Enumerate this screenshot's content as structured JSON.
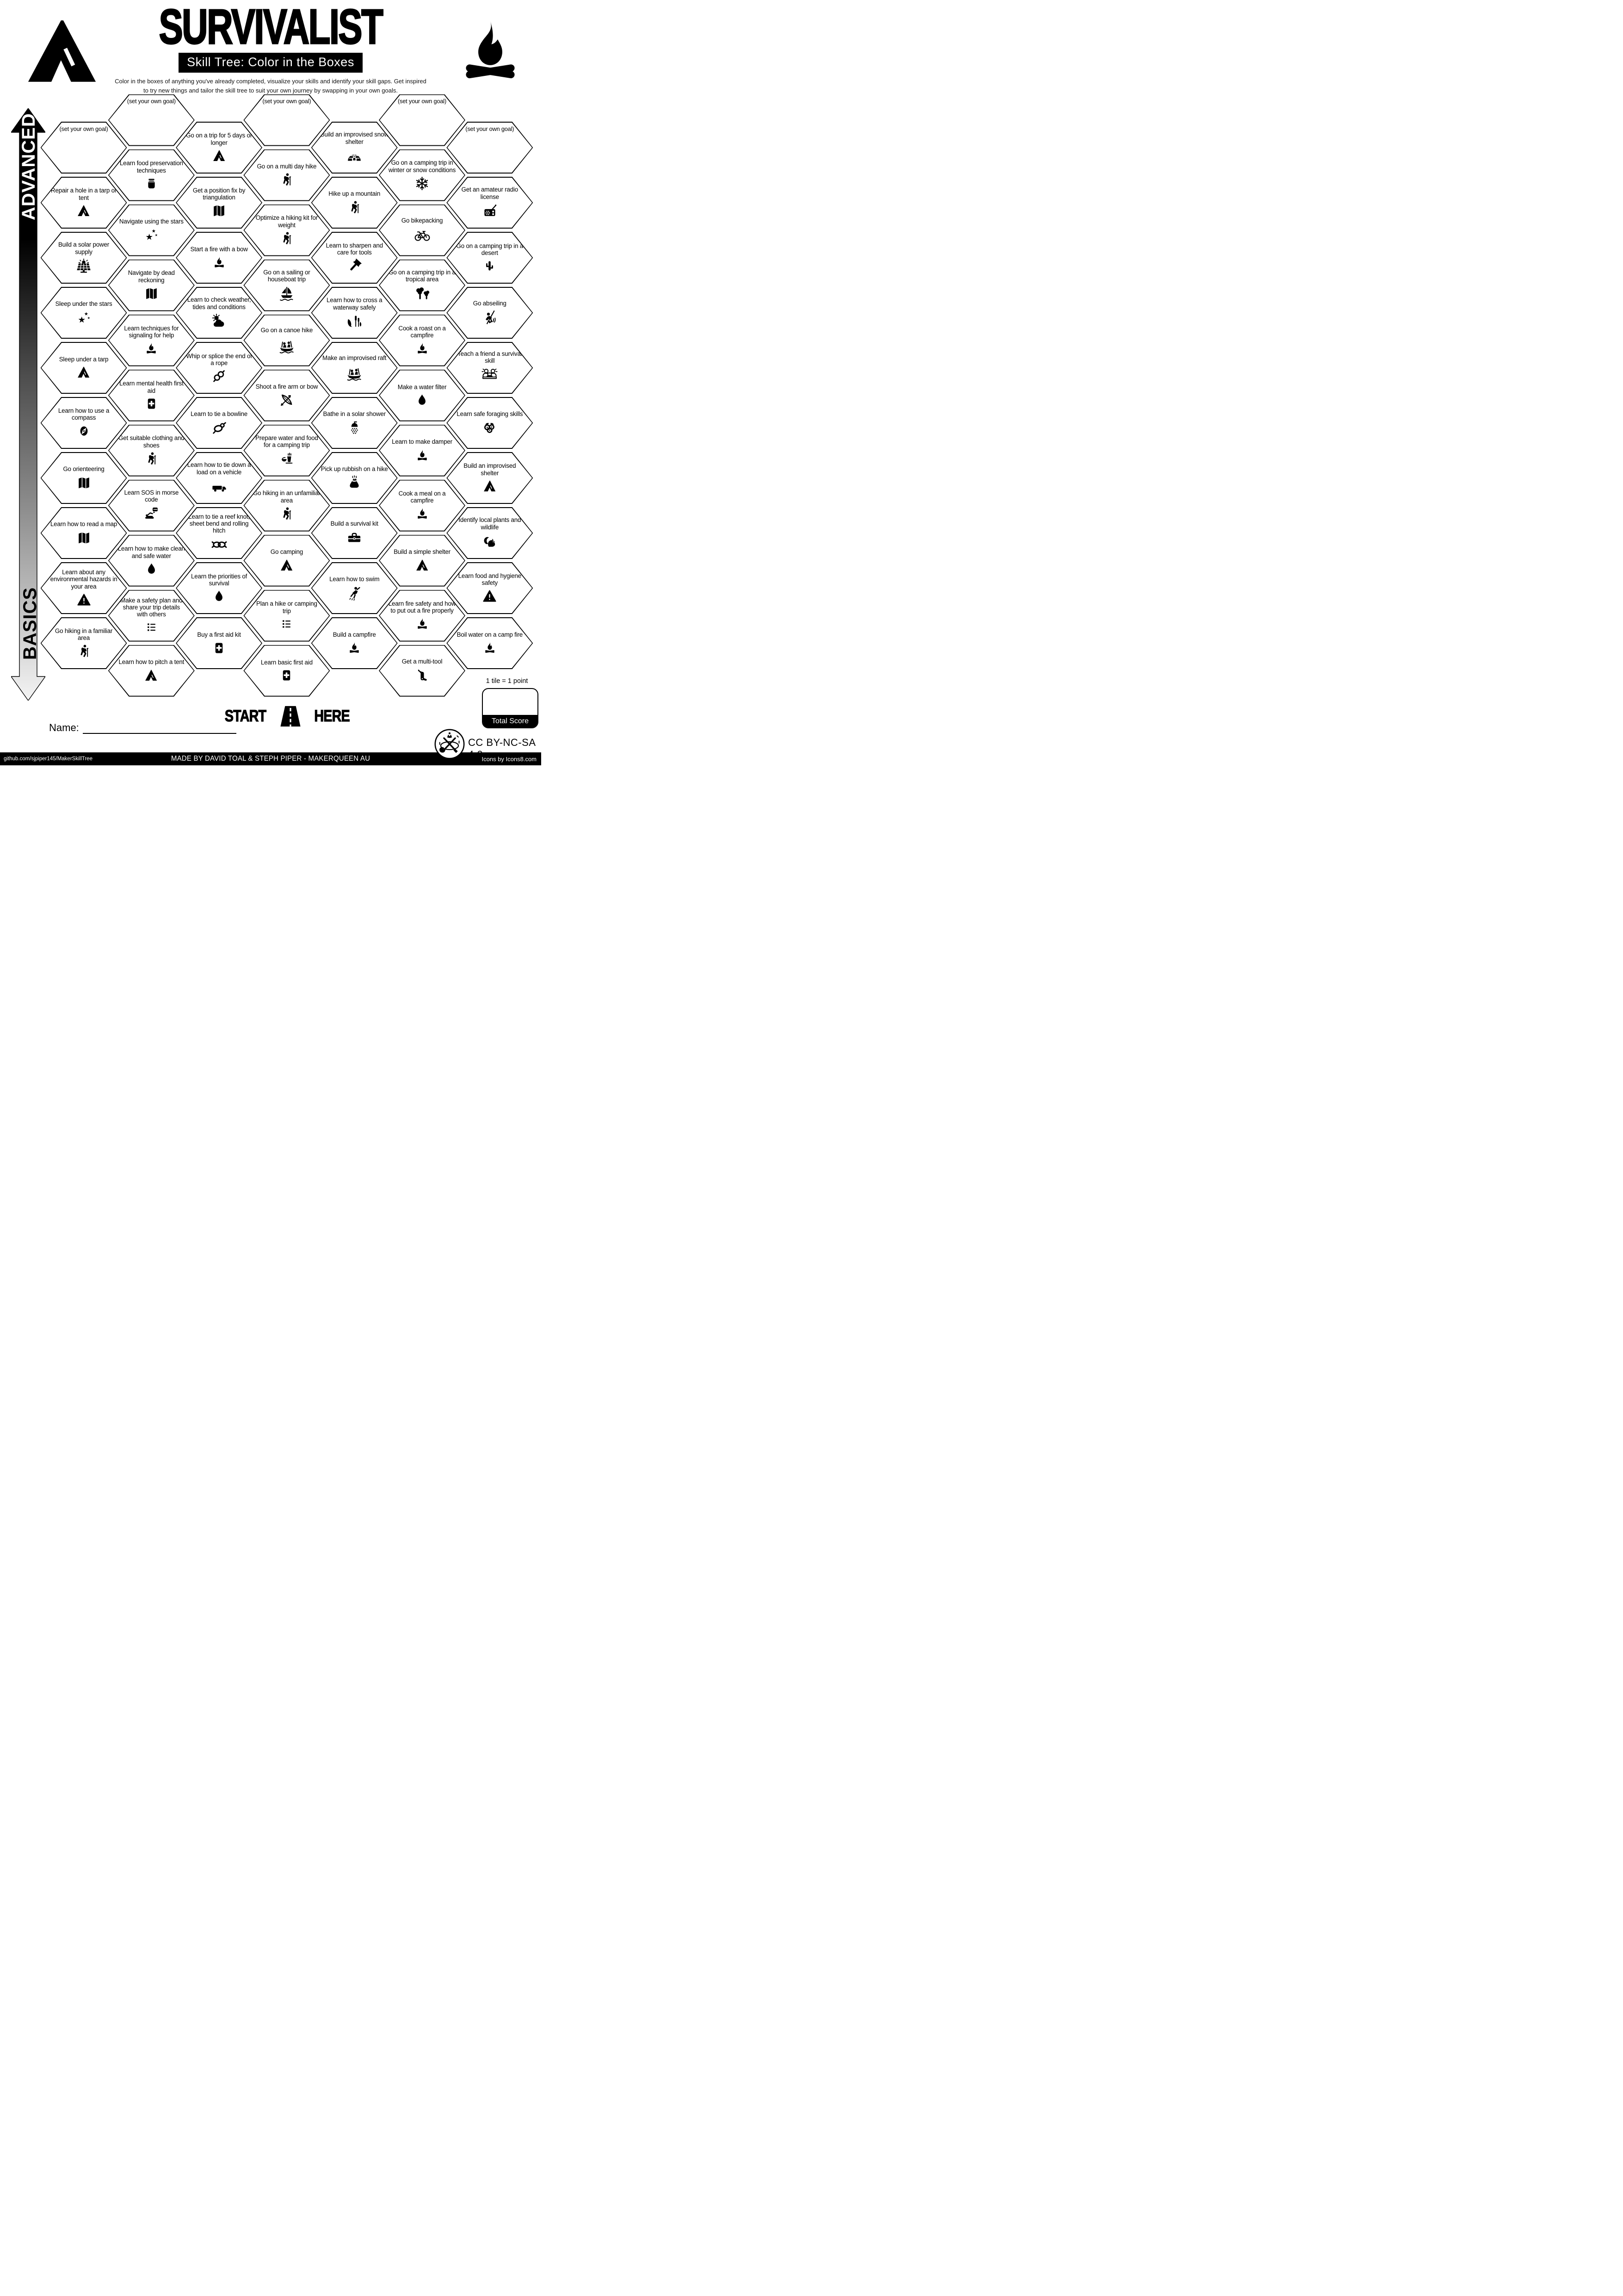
{
  "header": {
    "title": "SURVIVALIST",
    "subtitle": "Skill Tree: Color in the Boxes",
    "description_line1": "Color in the boxes of anything you've already completed, visualize your skills and identify your skill gaps.  Get inspired",
    "description_line2": "to try new things and tailor the skill tree to suit your own journey by swapping in your own goals."
  },
  "axis": {
    "top_label": "ADVANCED",
    "bottom_label": "BASICS"
  },
  "hexgrid": {
    "columns": [
      {
        "items": [
          {
            "label": "(set your own goal)",
            "icon": null
          },
          {
            "label": "Repair a hole in a tarp or tent",
            "icon": "tent"
          },
          {
            "label": "Build a solar power supply",
            "icon": "solar"
          },
          {
            "label": "Sleep under the stars",
            "icon": "stars"
          },
          {
            "label": "Sleep under a tarp",
            "icon": "tent"
          },
          {
            "label": "Learn how to use a compass",
            "icon": "compass"
          },
          {
            "label": "Go orienteering",
            "icon": "map"
          },
          {
            "label": "Learn how to read a map",
            "icon": "map"
          },
          {
            "label": "Learn about any environmental hazards in your area",
            "icon": "warning"
          },
          {
            "label": "Go hiking in a familiar area",
            "icon": "hiker"
          }
        ]
      },
      {
        "items": [
          {
            "label": "(set your own goal)",
            "icon": null
          },
          {
            "label": "Learn food preservation techniques",
            "icon": "jar"
          },
          {
            "label": "Navigate using the stars",
            "icon": "stars"
          },
          {
            "label": "Navigate by dead reckoning",
            "icon": "map"
          },
          {
            "label": "Learn techniques for signaling for help",
            "icon": "campfire"
          },
          {
            "label": "Learn mental health first aid",
            "icon": "firstaid"
          },
          {
            "label": "Get suitable clothing and shoes",
            "icon": "hiker"
          },
          {
            "label": "Learn SOS in morse code",
            "icon": "morse"
          },
          {
            "label": "Learn how to make clean and safe water",
            "icon": "drop"
          },
          {
            "label": "Make a safety plan and share your trip details with others",
            "icon": "list"
          },
          {
            "label": "Learn how to pitch a tent",
            "icon": "tent"
          }
        ]
      },
      {
        "items": [
          {
            "label": "Go on a trip for 5 days or longer",
            "icon": "tent"
          },
          {
            "label": "Get a position fix by triangulation",
            "icon": "map"
          },
          {
            "label": "Start a fire with a bow",
            "icon": "campfire"
          },
          {
            "label": "Learn to check weather, tides and conditions",
            "icon": "weather"
          },
          {
            "label": "Whip or splice the end of a rope",
            "icon": "rope"
          },
          {
            "label": "Learn to tie a bowline",
            "icon": "knot"
          },
          {
            "label": "Learn how to tie down a load on a vehicle",
            "icon": "truck"
          },
          {
            "label": "Learn to tie a reef knot, sheet bend and rolling hitch",
            "icon": "reefknot"
          },
          {
            "label": "Learn the priorities of survival",
            "icon": "drop"
          },
          {
            "label": "Buy a first aid kit",
            "icon": "firstaid"
          }
        ]
      },
      {
        "items": [
          {
            "label": "(set your own goal)",
            "icon": null
          },
          {
            "label": "Go on a multi day hike",
            "icon": "hiker"
          },
          {
            "label": "Optimize a hiking kit for weight",
            "icon": "hiker"
          },
          {
            "label": "Go on a sailing or houseboat trip",
            "icon": "sailboat"
          },
          {
            "label": "Go on a canoe hike",
            "icon": "canoe"
          },
          {
            "label": "Shoot a fire arm or bow",
            "icon": "bow"
          },
          {
            "label": "Prepare water and food for a camping trip",
            "icon": "meal"
          },
          {
            "label": "Go hiking in an unfamiliar area",
            "icon": "hiker"
          },
          {
            "label": "Go camping",
            "icon": "tent"
          },
          {
            "label": "Plan a hike or camping trip",
            "icon": "list"
          },
          {
            "label": "Learn basic first aid",
            "icon": "firstaid"
          }
        ]
      },
      {
        "items": [
          {
            "label": "Build an improvised snow shelter",
            "icon": "igloo"
          },
          {
            "label": "Hike up a mountain",
            "icon": "hiker"
          },
          {
            "label": "Learn to sharpen and care for tools",
            "icon": "axe"
          },
          {
            "label": "Learn how to cross a waterway safely",
            "icon": "reeds"
          },
          {
            "label": "Make an improvised raft",
            "icon": "canoe"
          },
          {
            "label": "Bathe in a solar shower",
            "icon": "shower"
          },
          {
            "label": "Pick up rubbish on a hike",
            "icon": "rubbish"
          },
          {
            "label": "Build a survival kit",
            "icon": "toolbox"
          },
          {
            "label": "Learn how to swim",
            "icon": "swimmer"
          },
          {
            "label": "Build a campfire",
            "icon": "campfire"
          }
        ]
      },
      {
        "items": [
          {
            "label": "(set your own goal)",
            "icon": null
          },
          {
            "label": "Go on a camping trip in winter or snow conditions",
            "icon": "snowflake"
          },
          {
            "label": "Go bikepacking",
            "icon": "bike"
          },
          {
            "label": "Go on a camping trip in a tropical area",
            "icon": "palms"
          },
          {
            "label": "Cook a roast on a campfire",
            "icon": "campfire"
          },
          {
            "label": "Make a water filter",
            "icon": "drop"
          },
          {
            "label": "Learn to make damper",
            "icon": "campfire"
          },
          {
            "label": "Cook a meal on a campfire",
            "icon": "campfire"
          },
          {
            "label": "Build a simple shelter",
            "icon": "tent"
          },
          {
            "label": "Learn fire safety and how to put out a fire properly",
            "icon": "campfire"
          },
          {
            "label": "Get a multi-tool",
            "icon": "multitool"
          }
        ]
      },
      {
        "items": [
          {
            "label": "(set your own goal)",
            "icon": null
          },
          {
            "label": "Get an amateur radio license",
            "icon": "radio"
          },
          {
            "label": "Go on a camping trip in a desert",
            "icon": "cactus"
          },
          {
            "label": "Go abseiling",
            "icon": "abseil"
          },
          {
            "label": "Teach a friend a survival skill",
            "icon": "teach"
          },
          {
            "label": "Learn safe foraging skills",
            "icon": "berries"
          },
          {
            "label": "Build an improvised shelter",
            "icon": "tent"
          },
          {
            "label": "Identify local plants and wildlife",
            "icon": "squirrel"
          },
          {
            "label": "Learn food and hygiene safety",
            "icon": "warning"
          },
          {
            "label": "Boil water on a camp fire",
            "icon": "campfire"
          }
        ]
      }
    ]
  },
  "start": {
    "left_word": "START",
    "right_word": "HERE"
  },
  "name_field": {
    "label": "Name:",
    "value": ""
  },
  "score": {
    "note": "1 tile = 1 point",
    "box_label": "Total Score",
    "value": ""
  },
  "license": {
    "text": "CC BY-NC-SA 4.0"
  },
  "footer": {
    "left": "github.com/sjpiper145/MakerSkillTree",
    "center": "MADE BY DAVID TOAL & STEPH PIPER  -  MAKERQUEEN AU",
    "right": "Icons by Icons8.com"
  },
  "colors": {
    "ink": "#000000",
    "paper": "#ffffff"
  }
}
